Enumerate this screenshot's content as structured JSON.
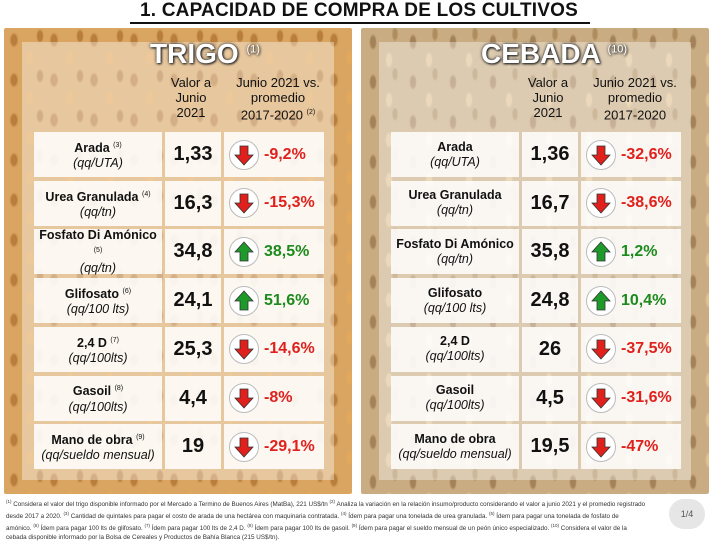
{
  "title": "1. CAPACIDAD DE COMPRA DE LOS CULTIVOS",
  "colors": {
    "negative": "#e0201c",
    "positive": "#1c8a1c",
    "down_arrow": "#e0201c",
    "up_arrow": "#1e9a2a"
  },
  "panels": [
    {
      "crop": "TRIGO",
      "note": "(1)",
      "header_value": [
        "Valor a",
        "Junio",
        "2021"
      ],
      "header_change": [
        "Junio 2021 vs.",
        "promedio",
        "2017-2020"
      ],
      "header_change_note": "(2)",
      "rows": [
        {
          "name": "Arada",
          "note": "(3)",
          "unit": "(qq/UTA)",
          "value": "1,33",
          "change": "-9,2%",
          "dir": "down"
        },
        {
          "name": "Urea Granulada",
          "note": "(4)",
          "unit": "(qq/tn)",
          "value": "16,3",
          "change": "-15,3%",
          "dir": "down"
        },
        {
          "name": "Fosfato Di Amónico",
          "note": "(5)",
          "unit": "(qq/tn)",
          "value": "34,8",
          "change": "38,5%",
          "dir": "up"
        },
        {
          "name": "Glifosato",
          "note": "(6)",
          "unit": "(qq/100 lts)",
          "value": "24,1",
          "change": "51,6%",
          "dir": "up"
        },
        {
          "name": "2,4 D",
          "note": "(7)",
          "unit": "(qq/100lts)",
          "value": "25,3",
          "change": "-14,6%",
          "dir": "down"
        },
        {
          "name": "Gasoil",
          "note": "(8)",
          "unit": "(qq/100lts)",
          "value": "4,4",
          "change": "-8%",
          "dir": "down"
        },
        {
          "name": "Mano de obra",
          "note": "(9)",
          "unit": "(qq/sueldo mensual)",
          "value": "19",
          "change": "-29,1%",
          "dir": "down"
        }
      ]
    },
    {
      "crop": "CEBADA",
      "note": "(10)",
      "header_value": [
        "Valor a",
        "Junio",
        "2021"
      ],
      "header_change": [
        "Junio 2021 vs.",
        "promedio",
        "2017-2020"
      ],
      "header_change_note": "",
      "rows": [
        {
          "name": "Arada",
          "note": "",
          "unit": "(qq/UTA)",
          "value": "1,36",
          "change": "-32,6%",
          "dir": "down"
        },
        {
          "name": "Urea Granulada",
          "note": "",
          "unit": "(qq/tn)",
          "value": "16,7",
          "change": "-38,6%",
          "dir": "down"
        },
        {
          "name": "Fosfato Di Amónico",
          "note": "",
          "unit": "(qq/tn)",
          "value": "35,8",
          "change": "1,2%",
          "dir": "up"
        },
        {
          "name": "Glifosato",
          "note": "",
          "unit": "(qq/100 lts)",
          "value": "24,8",
          "change": "10,4%",
          "dir": "up"
        },
        {
          "name": "2,4 D",
          "note": "",
          "unit": "(qq/100lts)",
          "value": "26",
          "change": "-37,5%",
          "dir": "down"
        },
        {
          "name": "Gasoil",
          "note": "",
          "unit": "(qq/100lts)",
          "value": "4,5",
          "change": "-31,6%",
          "dir": "down"
        },
        {
          "name": "Mano de obra",
          "note": "",
          "unit": "(qq/sueldo mensual)",
          "value": "19,5",
          "change": "-47%",
          "dir": "down"
        }
      ]
    }
  ],
  "footnotes": [
    {
      "n": "(1)",
      "text": "Considera el valor del trigo disponible informado por el Mercado a Termino de Buenos Aires (MatBa), 221 US$/tn"
    },
    {
      "n": "(2)",
      "text": "Analiza la variación en la relación insumo/producto considerando el valor a junio 2021 y el promedio registrado desde 2017 a 2020."
    },
    {
      "n": "(3)",
      "text": "Cantidad de quintales para pagar el costo de arada de una hectárea con maquinaria contratada."
    },
    {
      "n": "(4)",
      "text": "Ídem para pagar una tonelada de urea granulada."
    },
    {
      "n": "(5)",
      "text": "Ídem para pagar una tonelada de fosfato de amónico."
    },
    {
      "n": "(6)",
      "text": "Ídem para pagar 100 lts de glifosato."
    },
    {
      "n": "(7)",
      "text": "Ídem para pagar 100 lts de 2,4 D."
    },
    {
      "n": "(8)",
      "text": "Ídem para pagar 100 lts de gasoil."
    },
    {
      "n": "(9)",
      "text": "Ídem para pagar el sueldo mensual de un peón único especializado."
    },
    {
      "n": "(10)",
      "text": "Considera el valor de la cebada disponible informado por la Bolsa de Cereales y Productos de Bahía Blanca (215 US$/tn)."
    }
  ],
  "page": "1/4"
}
